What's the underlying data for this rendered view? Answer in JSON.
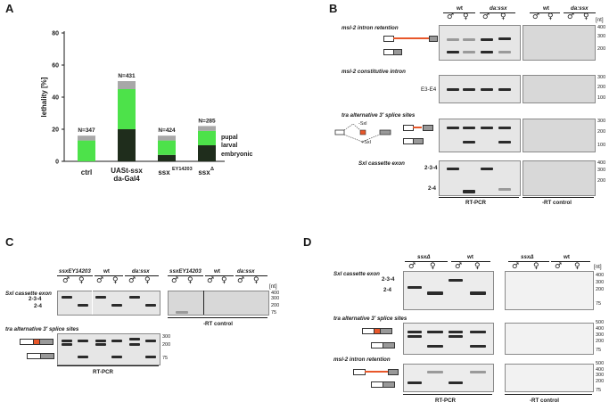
{
  "panels": {
    "A": {
      "letter": "A",
      "chart_data": {
        "type": "bar",
        "stacked": true,
        "ylabel": "lethality [%]",
        "ylim": [
          0,
          80
        ],
        "yticks": [
          "0",
          "20",
          "40",
          "60",
          "80"
        ],
        "categories": [
          "ctrl",
          "UASt-ssx da-Gal4",
          "ssxEY14203",
          "ssxΔ"
        ],
        "category_labels": [
          "ctrl",
          "UASt-ssx",
          "da-Gal4",
          "ssx",
          "EY14203",
          "ssx",
          "Δ"
        ],
        "n_labels": [
          "N=347",
          "N=431",
          "N=424",
          "N=285"
        ],
        "series": [
          {
            "name": "embryonic",
            "color": "#1f2d1c",
            "values": [
              0,
              20,
              4,
              10
            ]
          },
          {
            "name": "larval",
            "color": "#4de24a",
            "values": [
              13,
              25,
              9,
              9
            ]
          },
          {
            "name": "pupal",
            "color": "#a8a8a8",
            "values": [
              3,
              5,
              3,
              3
            ]
          }
        ],
        "legend": [
          "pupal",
          "larval",
          "embryonic"
        ]
      }
    },
    "B": {
      "letter": "B",
      "col_headers": [
        "wt",
        "da:ssx",
        "wt",
        "da:ssx"
      ],
      "gel_titles": [
        "msl-2 intron retention",
        "msl-2 constitutive intron",
        "tra alternative 3′ splice sites",
        "Sxl cassette exon"
      ],
      "tra_labels": [
        "-Sxl",
        "+Sxl"
      ],
      "unit": "[nt]",
      "markers_1": [
        "400",
        "300",
        "200"
      ],
      "markers_2": [
        "300",
        "200",
        "100"
      ],
      "markers_3": [
        "300",
        "200",
        "100"
      ],
      "markers_4": [
        "400",
        "300",
        "200"
      ],
      "band_labels_2": "E3-E4",
      "band_labels_4": [
        "2-3-4",
        "2-4"
      ],
      "footer": [
        "RT-PCR",
        "-RT control"
      ]
    },
    "C": {
      "letter": "C",
      "col_headers": [
        "ssxEY14203",
        "wt",
        "da:ssx",
        "ssxEY14203",
        "wt",
        "da:ssx"
      ],
      "gel_titles": [
        "Sxl cassette exon",
        "tra alternative 3′ splice sites"
      ],
      "band_labels": [
        "2-3-4",
        "2-4"
      ],
      "unit": "[nt]",
      "markers_1": [
        "400",
        "300",
        "200",
        "75"
      ],
      "markers_2": [
        "300",
        "200",
        "75"
      ],
      "footer": [
        "RT-PCR",
        "-RT control"
      ]
    },
    "D": {
      "letter": "D",
      "col_headers": [
        "ssxΔ",
        "wt",
        "ssxΔ",
        "wt"
      ],
      "gel_titles": [
        "Sxl cassette exon",
        "tra alternative 3′ splice sites",
        "msl-2 intron retention"
      ],
      "band_labels": [
        "2-3-4",
        "2-4"
      ],
      "unit": "[nt]",
      "markers_1": [
        "400",
        "300",
        "200",
        "75"
      ],
      "markers_2": [
        "500",
        "400",
        "300",
        "200",
        "75"
      ],
      "markers_3": [
        "500",
        "400",
        "300",
        "200",
        "75"
      ],
      "footer": [
        "RT-PCR",
        "-RT control"
      ]
    }
  }
}
